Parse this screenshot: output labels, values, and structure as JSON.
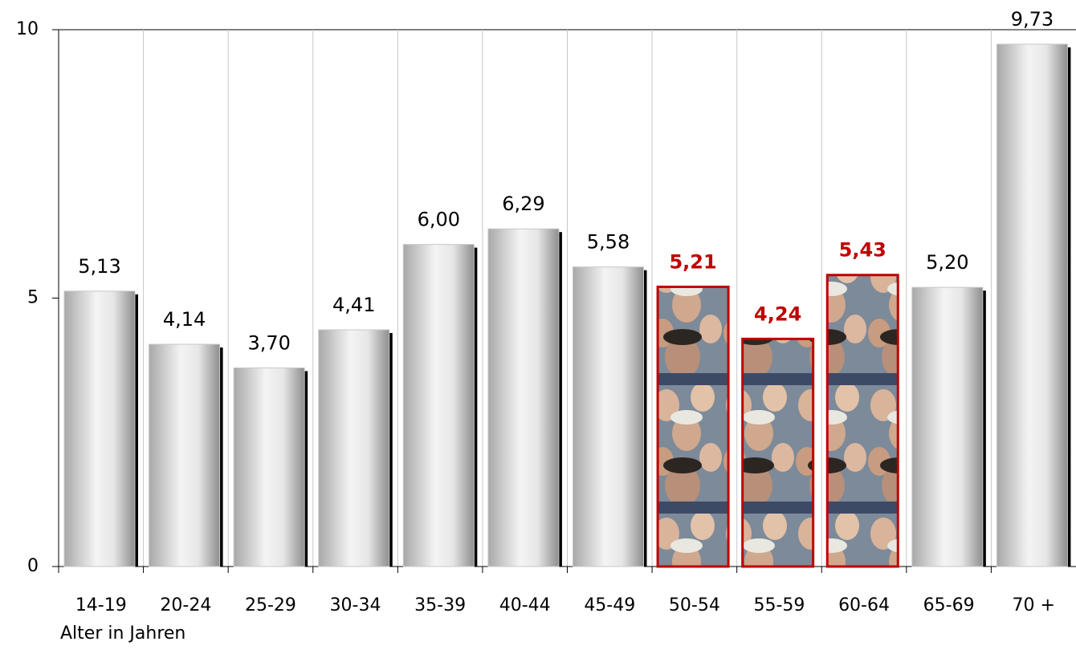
{
  "chart_data": {
    "type": "bar",
    "x_label": "Alter in Jahren",
    "categories": [
      "14-19",
      "20-24",
      "25-29",
      "30-34",
      "35-39",
      "40-44",
      "45-49",
      "50-54",
      "55-59",
      "60-64",
      "65-69",
      "70 +"
    ],
    "values": [
      5.13,
      4.14,
      3.7,
      4.41,
      6.0,
      6.29,
      5.58,
      5.21,
      4.24,
      5.43,
      5.2,
      9.73
    ],
    "value_labels": [
      "5,13",
      "4,14",
      "3,70",
      "4,41",
      "6,00",
      "6,29",
      "5,58",
      "5,21",
      "4,24",
      "5,43",
      "5,20",
      "9,73"
    ],
    "colors": [
      "#c8c8c8",
      "#c8c8c8",
      "#c8c8c8",
      "#c8c8c8",
      "#c8c8c8",
      "#c8c8c8",
      "#c8c8c8",
      "#c00000",
      "#c00000",
      "#c00000",
      "#c8c8c8",
      "#c8c8c8"
    ],
    "ylim": [
      0,
      10
    ],
    "yticks": [
      0,
      5,
      10
    ]
  }
}
